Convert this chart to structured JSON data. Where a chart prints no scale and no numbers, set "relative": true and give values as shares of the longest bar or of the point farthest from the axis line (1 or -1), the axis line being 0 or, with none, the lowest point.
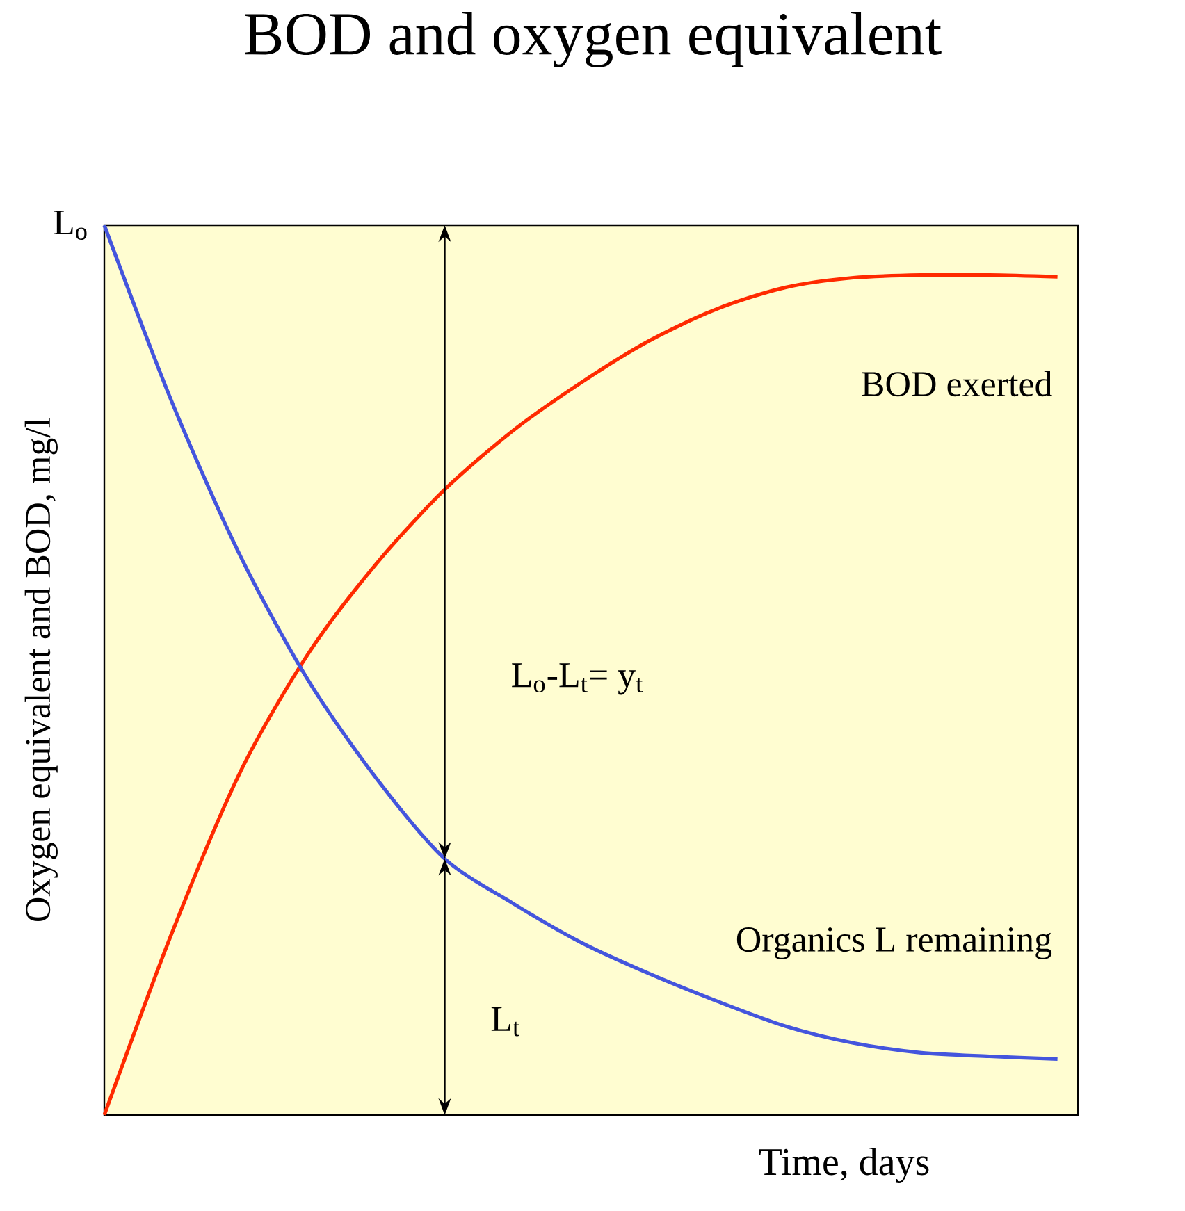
{
  "chart_data": {
    "type": "line",
    "title": "BOD and oxygen equivalent",
    "xlabel": "Time, days",
    "ylabel": "Oxygen equivalent and BOD, mg/l",
    "relative": true,
    "categories": [
      null,
      null,
      null,
      null,
      null,
      null,
      null,
      null,
      null,
      null,
      null,
      null,
      null,
      null,
      null
    ],
    "series": [
      {
        "name": "BOD exerted",
        "color": "#ff2a00",
        "values": [
          0,
          0.206,
          0.386,
          0.519,
          0.62,
          0.703,
          0.769,
          0.823,
          0.87,
          0.906,
          0.93,
          0.941,
          0.944,
          0.944,
          0.942
        ]
      },
      {
        "name": "Organics L remaining",
        "color": "#4455dd",
        "values": [
          1,
          0.8,
          0.628,
          0.488,
          0.378,
          0.288,
          0.238,
          0.194,
          0.159,
          0.128,
          0.1,
          0.081,
          0.07,
          0.066,
          0.063
        ]
      }
    ],
    "annotations": [
      "L$_{o}$",
      "L$_{o}$-L$_{t}$= y$_{t}$",
      "L$_{t}$"
    ]
  }
}
